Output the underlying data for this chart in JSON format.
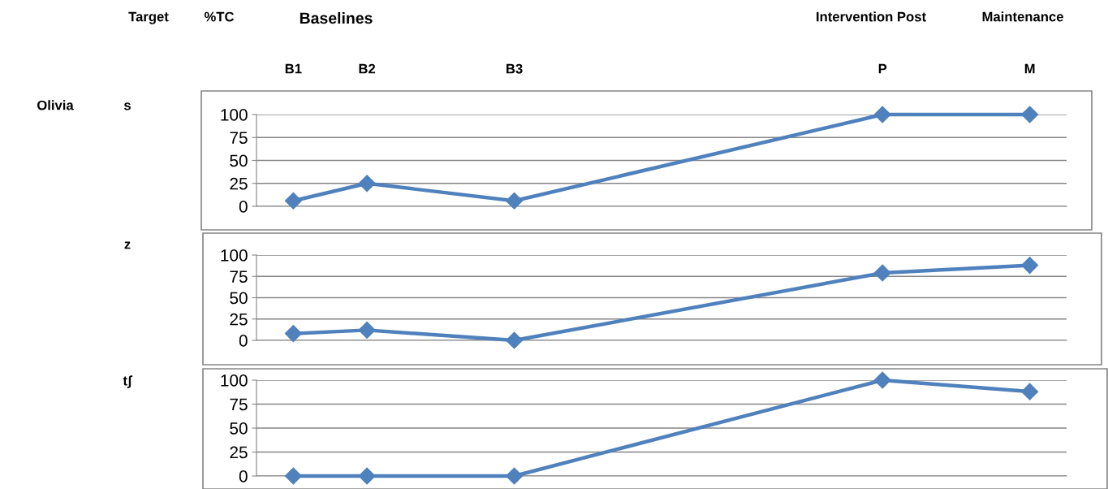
{
  "chart_data": [
    {
      "type": "line",
      "ylabel": "s",
      "annotations": [
        "Target",
        "%TC",
        "Baselines",
        "Intervention Post",
        "Maintenance",
        "Olivia"
      ],
      "categories": [
        "B1",
        "B2",
        null,
        "B3",
        null,
        null,
        null,
        null,
        "P",
        null,
        "M"
      ],
      "values": [
        6,
        25,
        null,
        6,
        null,
        null,
        null,
        null,
        100,
        null,
        100
      ],
      "color": "#4f81bd",
      "ylim": [
        0,
        100
      ],
      "yticks": [
        0,
        25,
        50,
        75,
        100
      ],
      "grid": "y",
      "marker": "diamond",
      "line_style": "solid"
    },
    {
      "type": "line",
      "ylabel": "z",
      "categories": [
        null,
        null,
        null,
        null,
        null,
        null,
        null,
        null,
        null,
        null,
        null
      ],
      "values": [
        8,
        12,
        null,
        0,
        null,
        null,
        null,
        null,
        79,
        null,
        88
      ],
      "color": "#4f81bd",
      "ylim": [
        0,
        100
      ],
      "yticks": [
        0,
        25,
        50,
        75,
        100
      ],
      "grid": "y",
      "marker": "diamond",
      "line_style": "solid",
      "tick_labels": "y"
    },
    {
      "type": "line",
      "ylabel": "tʃ",
      "categories": [
        null,
        null,
        null,
        null,
        null,
        null,
        null,
        null,
        null,
        null,
        null
      ],
      "values": [
        0,
        0,
        null,
        0,
        null,
        null,
        null,
        null,
        100,
        null,
        88
      ],
      "color": "#4f81bd",
      "ylim": [
        0,
        100
      ],
      "yticks": [
        0,
        25,
        50,
        75,
        100
      ],
      "grid": "y",
      "marker": "diamond",
      "line_style": "solid",
      "tick_labels": "y"
    }
  ]
}
